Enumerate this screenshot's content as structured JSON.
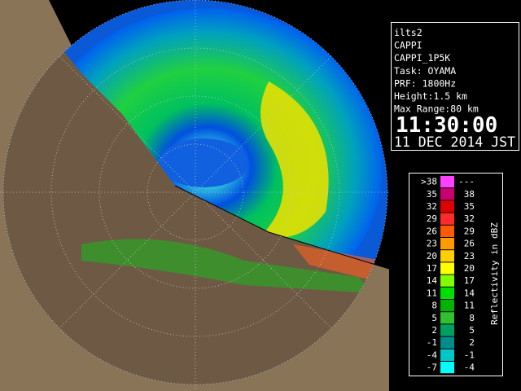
{
  "info": {
    "lines": [
      "ilts2",
      "CAPPI",
      "CAPPI_1P5K",
      "Task: OYAMA",
      "PRF: 1800Hz",
      "Height:1.5 km",
      "Max Range:80 km"
    ],
    "time": "11:30:00",
    "date": "11 DEC 2014 JST"
  },
  "legend": {
    "title": "Reflectivity in dBZ",
    "rows": [
      {
        "low": ">38",
        "high": "---",
        "color": "#ff40ff"
      },
      {
        "low": "35",
        "high": "38",
        "color": "#c80070"
      },
      {
        "low": "32",
        "high": "35",
        "color": "#e00000"
      },
      {
        "low": "29",
        "high": "32",
        "color": "#ff2a2a"
      },
      {
        "low": "26",
        "high": "29",
        "color": "#ff5a00"
      },
      {
        "low": "23",
        "high": "26",
        "color": "#ff9a00"
      },
      {
        "low": "20",
        "high": "23",
        "color": "#ffd000"
      },
      {
        "low": "17",
        "high": "20",
        "color": "#ffff00"
      },
      {
        "low": "14",
        "high": "17",
        "color": "#80ff00"
      },
      {
        "low": "11",
        "high": "14",
        "color": "#00e000"
      },
      {
        "low": "8",
        "high": "11",
        "color": "#00b400"
      },
      {
        "low": "5",
        "high": "8",
        "color": "#30c030"
      },
      {
        "low": "2",
        "high": "5",
        "color": "#00a060"
      },
      {
        "low": "-1",
        "high": "2",
        "color": "#008c8c"
      },
      {
        "low": "-4",
        "high": "-1",
        "color": "#00c8c8"
      },
      {
        "low": "-7",
        "high": "-4",
        "color": "#00ffff"
      }
    ]
  }
}
